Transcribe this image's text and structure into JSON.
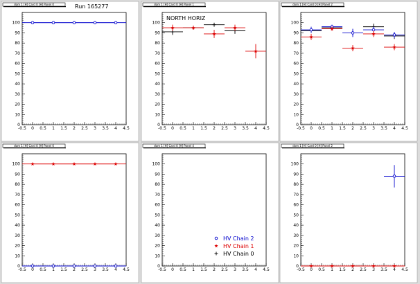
{
  "run_label": "Run 165277",
  "colors": {
    "chain0": "#000000",
    "chain1": "#dd0000",
    "chain2": "#0000cc",
    "pad_bg": "#ffffff",
    "outer_bg": "#dcdcdc"
  },
  "chart_data": [
    {
      "type": "scatter",
      "title": "dom 1 [H] Card 0 [H] Panel 0",
      "annotation": "",
      "xlim": [
        -0.5,
        4.5
      ],
      "ylim": [
        0,
        110
      ],
      "xticks": [
        "-0.5",
        "0",
        "0.5",
        "1",
        "1.5",
        "2",
        "2.5",
        "3",
        "3.5",
        "4",
        "4.5"
      ],
      "yticks": [
        "0",
        "10",
        "20",
        "30",
        "40",
        "50",
        "60",
        "70",
        "80",
        "90",
        "100"
      ],
      "series": [
        {
          "color_key": "chain2",
          "marker": "circle",
          "line": true,
          "points": [
            [
              0,
              100,
              0.5,
              0.5
            ],
            [
              1,
              100,
              0.5,
              0.5
            ],
            [
              2,
              100,
              0.5,
              0.5
            ],
            [
              3,
              100,
              0.5,
              0.5
            ],
            [
              4,
              100,
              0.5,
              0.5
            ]
          ]
        }
      ]
    },
    {
      "type": "scatter",
      "title": "dom 1 [H] Card 0 [H] Panel 1",
      "annotation": "NORTH HORIZ",
      "xlim": [
        -0.5,
        4.5
      ],
      "ylim": [
        0,
        110
      ],
      "xticks": [
        "-0.5",
        "0",
        "0.5",
        "1",
        "1.5",
        "2",
        "2.5",
        "3",
        "3.5",
        "4",
        "4.5"
      ],
      "yticks": [
        "0",
        "10",
        "20",
        "30",
        "40",
        "50",
        "60",
        "70",
        "80",
        "90",
        "100"
      ],
      "series": [
        {
          "color_key": "chain0",
          "marker": "plus",
          "line": false,
          "points": [
            [
              0,
              91,
              0.5,
              3
            ],
            [
              1,
              95,
              0.5,
              2
            ],
            [
              2,
              98,
              0.5,
              2
            ],
            [
              3,
              92,
              0.5,
              3
            ]
          ]
        },
        {
          "color_key": "chain1",
          "marker": "star",
          "line": false,
          "points": [
            [
              0,
              95,
              0.5,
              3
            ],
            [
              1,
              95,
              0.5,
              2
            ],
            [
              2,
              89,
              0.5,
              4
            ],
            [
              3,
              95,
              0.5,
              3
            ],
            [
              4,
              72,
              0.5,
              7
            ]
          ]
        }
      ]
    },
    {
      "type": "scatter",
      "title": "dom 1 [H] Card 0 [H] Panel 2",
      "annotation": "",
      "xlim": [
        -0.5,
        4.5
      ],
      "ylim": [
        0,
        110
      ],
      "xticks": [
        "-0.5",
        "0",
        "0.5",
        "1",
        "1.5",
        "2",
        "2.5",
        "3",
        "3.5",
        "4",
        "4.5"
      ],
      "yticks": [
        "0",
        "10",
        "20",
        "30",
        "40",
        "50",
        "60",
        "70",
        "80",
        "90",
        "100"
      ],
      "series": [
        {
          "color_key": "chain0",
          "marker": "plus",
          "line": false,
          "points": [
            [
              0,
              92,
              0.5,
              2
            ],
            [
              1,
              95,
              0.5,
              2
            ],
            [
              3,
              96,
              0.5,
              3
            ],
            [
              4,
              87,
              0.5,
              3
            ]
          ]
        },
        {
          "color_key": "chain2",
          "marker": "circle",
          "line": false,
          "points": [
            [
              0,
              93,
              0.5,
              3
            ],
            [
              1,
              96,
              0.5,
              2
            ],
            [
              2,
              90,
              0.5,
              4
            ],
            [
              3,
              93,
              0.5,
              3
            ],
            [
              4,
              88,
              0.5,
              3
            ]
          ]
        },
        {
          "color_key": "chain1",
          "marker": "star",
          "line": false,
          "points": [
            [
              0,
              86,
              0.5,
              3
            ],
            [
              1,
              94,
              0.5,
              2
            ],
            [
              2,
              75,
              0.5,
              3
            ],
            [
              3,
              89,
              0.5,
              3
            ],
            [
              4,
              76,
              0.5,
              3
            ]
          ]
        }
      ]
    },
    {
      "type": "scatter",
      "title": "dom 1 [H] Card 0 [H] Panel 0",
      "annotation": "",
      "xlim": [
        -0.5,
        4.5
      ],
      "ylim": [
        0,
        110
      ],
      "xticks": [
        "-0.5",
        "0",
        "0.5",
        "1",
        "1.5",
        "2",
        "2.5",
        "3",
        "3.5",
        "4",
        "4.5"
      ],
      "yticks": [
        "0",
        "10",
        "20",
        "30",
        "40",
        "50",
        "60",
        "70",
        "80",
        "90",
        "100"
      ],
      "series": [
        {
          "color_key": "chain1",
          "marker": "star",
          "line": true,
          "points": [
            [
              0,
              100,
              0.5,
              0.5
            ],
            [
              1,
              100,
              0.5,
              0.5
            ],
            [
              2,
              100,
              0.5,
              0.5
            ],
            [
              3,
              100,
              0.5,
              0.5
            ],
            [
              4,
              100,
              0.5,
              0.5
            ]
          ]
        },
        {
          "color_key": "chain2",
          "marker": "circle",
          "line": true,
          "points": [
            [
              0,
              0,
              0.5,
              0
            ],
            [
              1,
              0,
              0.5,
              0
            ],
            [
              2,
              0,
              0.5,
              0
            ],
            [
              3,
              0,
              0.5,
              0
            ],
            [
              4,
              0,
              0.5,
              0
            ]
          ]
        }
      ]
    },
    {
      "type": "scatter",
      "title": "dom 1 [H] Card 0 [H] Panel 4",
      "annotation": "",
      "xlim": [
        -0.5,
        4.5
      ],
      "ylim": [
        0,
        110
      ],
      "xticks": [
        "-0.5",
        "0",
        "0.5",
        "1",
        "1.5",
        "2",
        "2.5",
        "3",
        "3.5",
        "4",
        "4.5"
      ],
      "yticks": [
        "0",
        "10",
        "20",
        "30",
        "40",
        "50",
        "60",
        "70",
        "80",
        "90",
        "100"
      ],
      "legend": [
        {
          "label": "HV Chain 2",
          "color_key": "chain2",
          "marker": "circle"
        },
        {
          "label": "HV Chain 1",
          "color_key": "chain1",
          "marker": "star"
        },
        {
          "label": "HV Chain 0",
          "color_key": "chain0",
          "marker": "plus"
        }
      ],
      "series": []
    },
    {
      "type": "scatter",
      "title": "dom 1 [H] Card 0 [H] Panel 2",
      "annotation": "",
      "xlim": [
        -0.5,
        4.5
      ],
      "ylim": [
        0,
        110
      ],
      "xticks": [
        "-0.5",
        "0",
        "0.5",
        "1",
        "1.5",
        "2",
        "2.5",
        "3",
        "3.5",
        "4",
        "4.5"
      ],
      "yticks": [
        "0",
        "10",
        "20",
        "30",
        "40",
        "50",
        "60",
        "70",
        "80",
        "90",
        "100"
      ],
      "series": [
        {
          "color_key": "chain2",
          "marker": "circle",
          "line": false,
          "points": [
            [
              4,
              88,
              0.5,
              11
            ]
          ]
        },
        {
          "color_key": "chain1",
          "marker": "star",
          "line": true,
          "points": [
            [
              0,
              0,
              0.5,
              0
            ],
            [
              1,
              0,
              0.5,
              0
            ],
            [
              2,
              0,
              0.5,
              0
            ],
            [
              3,
              0,
              0.5,
              0
            ],
            [
              4,
              0,
              0.5,
              0
            ]
          ]
        }
      ]
    }
  ]
}
